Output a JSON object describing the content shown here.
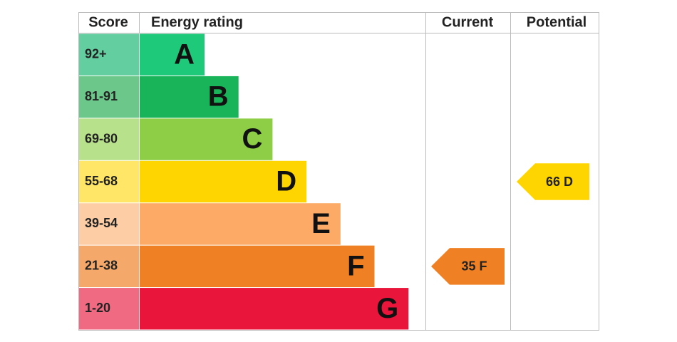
{
  "chart_data": {
    "type": "energy-rating",
    "headers": {
      "score": "Score",
      "rating": "Energy rating",
      "current": "Current",
      "potential": "Potential"
    },
    "bands": [
      {
        "score": "92+",
        "letter": "A",
        "color": "#1ec97a",
        "score_color": "#63cfa0"
      },
      {
        "score": "81-91",
        "letter": "B",
        "color": "#19b459",
        "score_color": "#6cc88a"
      },
      {
        "score": "69-80",
        "letter": "C",
        "color": "#8dce46",
        "score_color": "#b7e18a"
      },
      {
        "score": "55-68",
        "letter": "D",
        "color": "#ffd500",
        "score_color": "#ffe666"
      },
      {
        "score": "39-54",
        "letter": "E",
        "color": "#fcaa65",
        "score_color": "#fdcda5"
      },
      {
        "score": "21-38",
        "letter": "F",
        "color": "#ef8023",
        "score_color": "#f4a96a"
      },
      {
        "score": "1-20",
        "letter": "G",
        "color": "#e9153b",
        "score_color": "#f06a82"
      }
    ],
    "current": {
      "value": 35,
      "label": "35 F",
      "color": "#ef8023"
    },
    "potential": {
      "value": 66,
      "label": "66 D",
      "color": "#ffd500"
    }
  }
}
